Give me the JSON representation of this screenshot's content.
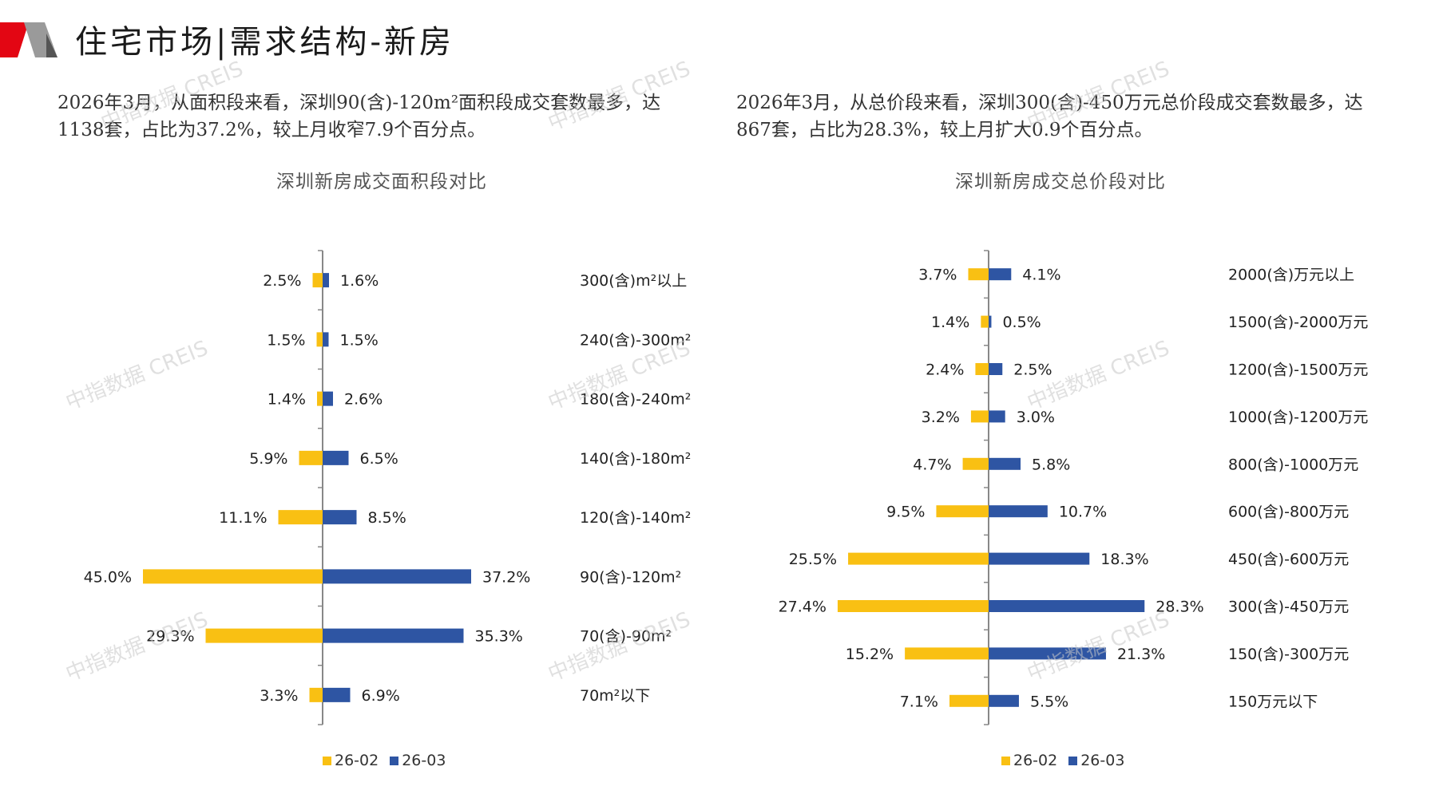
{
  "header": {
    "title": "住宅市场|需求结构-新房"
  },
  "colors": {
    "prev": "#F9C013",
    "curr": "#2E55A3",
    "axis": "#888888",
    "accent": "#E30613"
  },
  "desc_left": "2026年3月，从面积段来看，深圳90(含)-120m²面积段成交套数最多，达1138套，占比为37.2%，较上月收窄7.9个百分点。",
  "desc_right": "2026年3月，从总价段来看，深圳300(含)-450万元总价段成交套数最多，达867套，占比为28.3%，较上月扩大0.9个百分点。",
  "watermark": "中指数据 CREIS",
  "chart_data": [
    {
      "type": "bar",
      "orientation": "horizontal-butterfly",
      "title": "深圳新房成交面积段对比",
      "categories": [
        "300(含)m²以上",
        "240(含)-300m²",
        "180(含)-240m²",
        "140(含)-180m²",
        "120(含)-140m²",
        "90(含)-120m²",
        "70(含)-90m²",
        "70m²以下"
      ],
      "series": [
        {
          "name": "26-02",
          "values": [
            2.5,
            1.5,
            1.4,
            5.9,
            11.1,
            45.0,
            29.3,
            3.3
          ]
        },
        {
          "name": "26-03",
          "values": [
            1.6,
            1.5,
            2.6,
            6.5,
            8.5,
            37.2,
            35.3,
            6.9
          ]
        }
      ],
      "unit": "%",
      "legend": "bottom-center"
    },
    {
      "type": "bar",
      "orientation": "horizontal-butterfly",
      "title": "深圳新房成交总价段对比",
      "categories": [
        "2000(含)万元以上",
        "1500(含)-2000万元",
        "1200(含)-1500万元",
        "1000(含)-1200万元",
        "800(含)-1000万元",
        "600(含)-800万元",
        "450(含)-600万元",
        "300(含)-450万元",
        "150(含)-300万元",
        "150万元以下"
      ],
      "series": [
        {
          "name": "26-02",
          "values": [
            3.7,
            1.4,
            2.4,
            3.2,
            4.7,
            9.5,
            25.5,
            27.4,
            15.2,
            7.1
          ]
        },
        {
          "name": "26-03",
          "values": [
            4.1,
            0.5,
            2.5,
            3.0,
            5.8,
            10.7,
            18.3,
            28.3,
            21.3,
            5.5
          ]
        }
      ],
      "unit": "%",
      "legend": "bottom-center"
    }
  ]
}
